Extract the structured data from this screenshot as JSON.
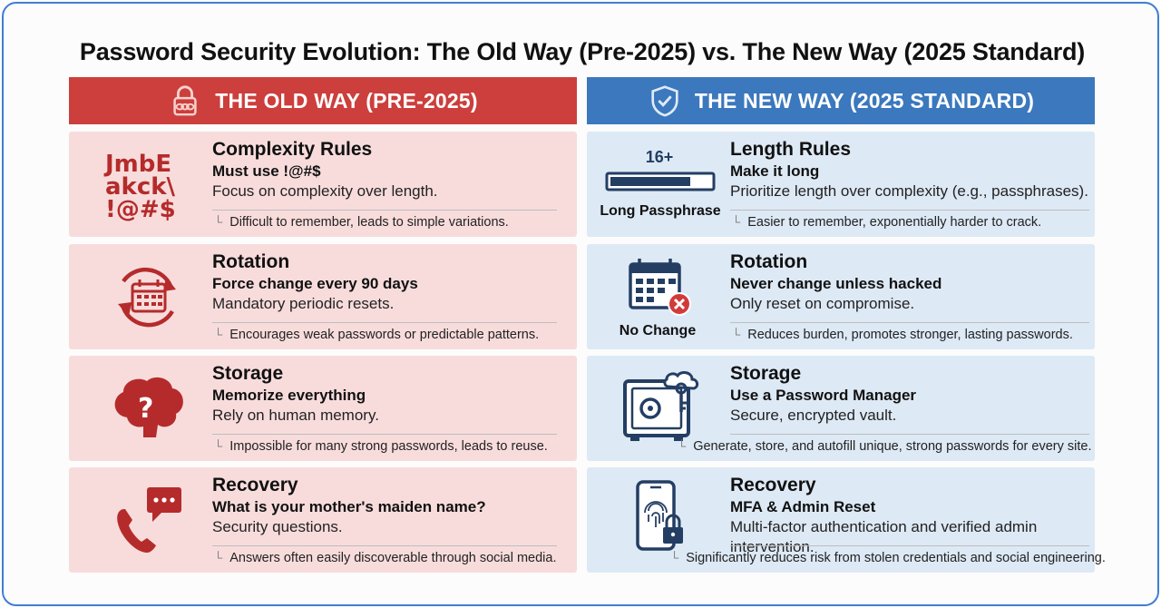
{
  "title": "Password Security Evolution: The Old Way (Pre-2025) vs. The New Way (2025 Standard)",
  "colors": {
    "old_accent": "#cc3f3c",
    "old_card": "#f8dcdc",
    "new_accent": "#3b78bd",
    "new_card": "#dde9f5",
    "icon_red": "#b52b2b",
    "icon_navy": "#243e63"
  },
  "old": {
    "header": "THE OLD WAY (PRE-2025)",
    "header_icon": "padlock-chain-icon",
    "cards": [
      {
        "icon": "complexity-characters-icon",
        "glyph_lines": [
          "JmbE",
          "akck\\",
          "!@#$"
        ],
        "head": "Complexity Rules",
        "sub": "Must use !@#$",
        "desc": "Focus on complexity over length.",
        "note": "Difficult to remember, leads to simple variations."
      },
      {
        "icon": "calendar-rotate-icon",
        "head": "Rotation",
        "sub": "Force change every 90 days",
        "desc": "Mandatory periodic resets.",
        "note": "Encourages weak passwords or predictable patterns."
      },
      {
        "icon": "brain-question-icon",
        "head": "Storage",
        "sub": "Memorize everything",
        "desc": "Rely on human memory.",
        "note": "Impossible for many strong passwords, leads to reuse."
      },
      {
        "icon": "phone-chat-icon",
        "head": "Recovery",
        "sub": "What is your mother's maiden name?",
        "desc": "Security questions.",
        "note": "Answers often easily discoverable through social media."
      }
    ]
  },
  "new": {
    "header": "THE NEW WAY (2025 STANDARD)",
    "header_icon": "shield-check-icon",
    "cards": [
      {
        "icon": "length-bar-icon",
        "icon_top": "16+",
        "icon_caption": "Long Passphrase",
        "length_fill": 0.8,
        "head": "Length Rules",
        "sub": "Make it long",
        "desc": "Prioritize length over complexity (e.g., passphrases).",
        "note": "Easier to remember, exponentially harder to crack."
      },
      {
        "icon": "calendar-no-change-icon",
        "icon_caption": "No Change",
        "head": "Rotation",
        "sub": "Never change unless hacked",
        "desc": "Only reset on compromise.",
        "note": "Reduces burden, promotes stronger, lasting passwords."
      },
      {
        "icon": "safe-cloud-key-icon",
        "head": "Storage",
        "sub": "Use a Password Manager",
        "desc": "Secure, encrypted vault.",
        "note": "Generate, store, and autofill unique, strong passwords for every site."
      },
      {
        "icon": "phone-fingerprint-lock-icon",
        "head": "Recovery",
        "sub": "MFA & Admin Reset",
        "desc": "Multi-factor authentication and verified admin intervention.",
        "note": "Significantly reduces risk from stolen credentials and social engineering."
      }
    ]
  }
}
